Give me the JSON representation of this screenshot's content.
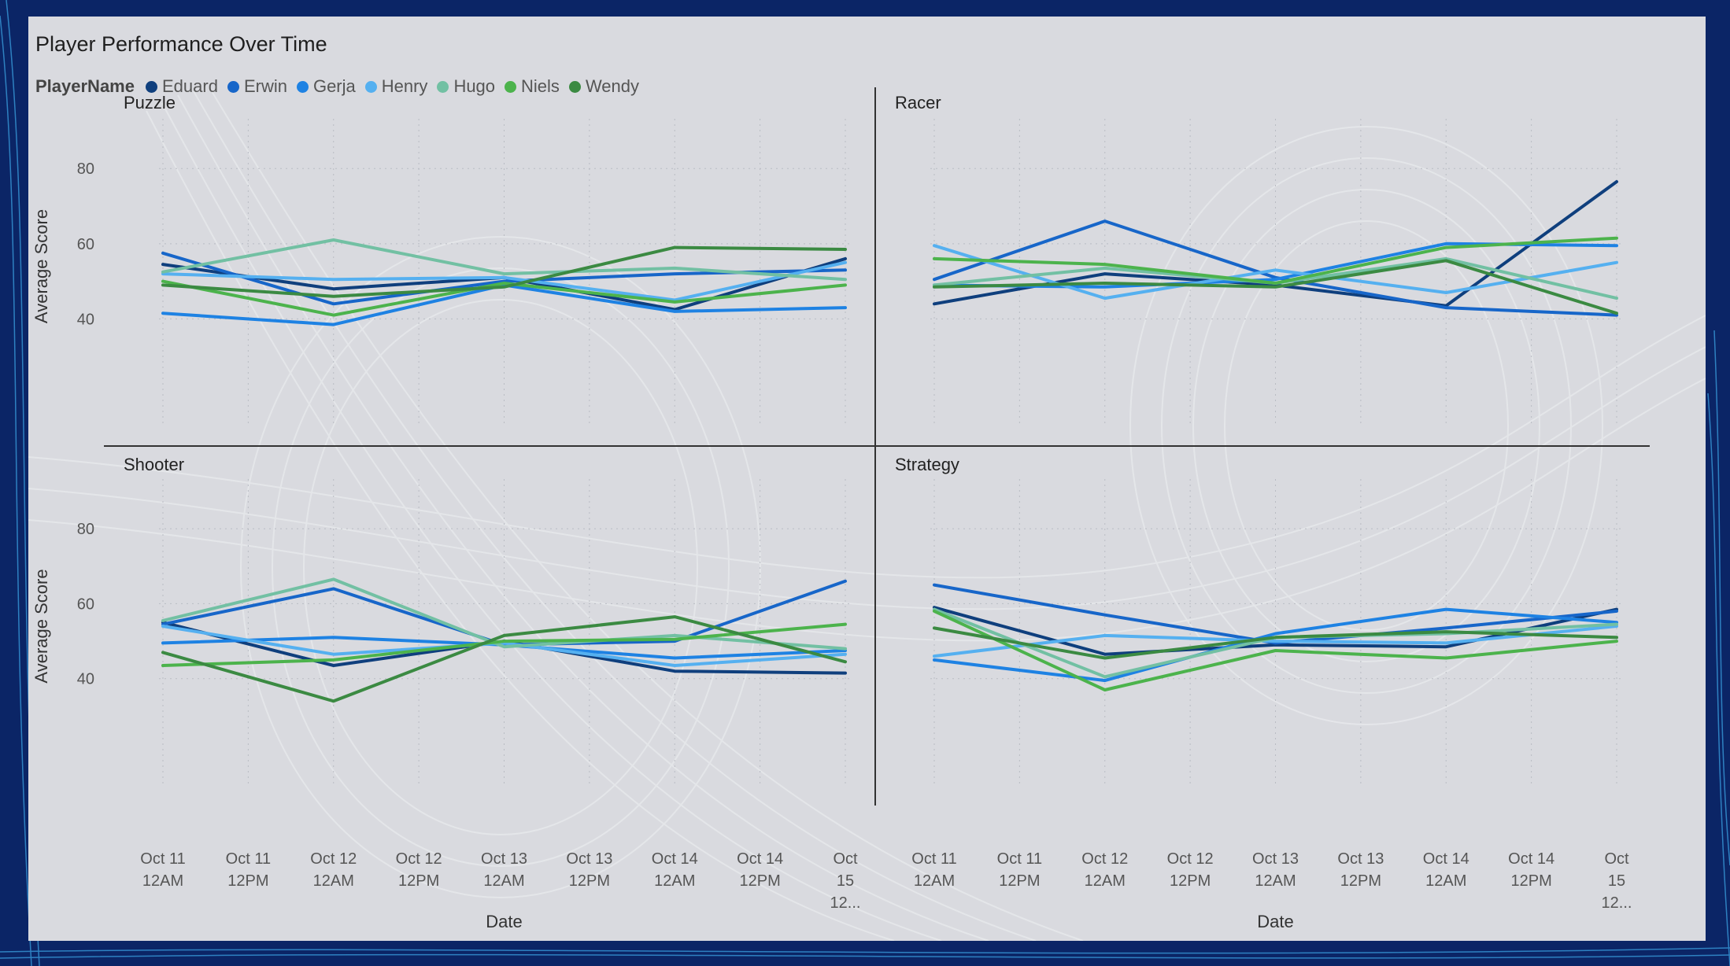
{
  "chart_data": {
    "type": "line",
    "title": "Player Performance Over Time",
    "legend_title": "PlayerName",
    "legend_position": "top-left",
    "xlabel": "Date",
    "ylabel": "Average Score",
    "ylim": [
      20,
      88
    ],
    "yticks": [
      40,
      60,
      80
    ],
    "x_ticks": [
      [
        "Oct 11",
        "12AM"
      ],
      [
        "Oct 11",
        "12PM"
      ],
      [
        "Oct 12",
        "12AM"
      ],
      [
        "Oct 12",
        "12PM"
      ],
      [
        "Oct 13",
        "12AM"
      ],
      [
        "Oct 13",
        "12PM"
      ],
      [
        "Oct 14",
        "12AM"
      ],
      [
        "Oct 14",
        "12PM"
      ],
      [
        "Oct",
        "15",
        "12..."
      ]
    ],
    "x": [
      "Oct 11 12AM",
      "Oct 12 12AM",
      "Oct 13 12AM",
      "Oct 14 12AM",
      "Oct 15 12AM"
    ],
    "players": [
      {
        "name": "Eduard",
        "color": "#0f3f7d"
      },
      {
        "name": "Erwin",
        "color": "#1766c9"
      },
      {
        "name": "Gerja",
        "color": "#1e82e3"
      },
      {
        "name": "Henry",
        "color": "#55b0f0"
      },
      {
        "name": "Hugo",
        "color": "#72c0a3"
      },
      {
        "name": "Niels",
        "color": "#4cb34c"
      },
      {
        "name": "Wendy",
        "color": "#3b8a42"
      }
    ],
    "panels": [
      {
        "name": "Puzzle",
        "series": [
          {
            "name": "Eduard",
            "values": [
              54.5,
              48,
              51,
              42.5,
              56
            ]
          },
          {
            "name": "Erwin",
            "values": [
              57.5,
              44,
              50,
              52,
              53
            ]
          },
          {
            "name": "Gerja",
            "values": [
              41.5,
              38.5,
              49,
              42,
              43
            ]
          },
          {
            "name": "Henry",
            "values": [
              52,
              50.5,
              51,
              45,
              55
            ]
          },
          {
            "name": "Hugo",
            "values": [
              52.5,
              61,
              52,
              53.5,
              50.5
            ]
          },
          {
            "name": "Niels",
            "values": [
              50,
              41,
              49.5,
              44.5,
              49
            ]
          },
          {
            "name": "Wendy",
            "values": [
              49,
              46,
              48.5,
              59,
              58.5
            ]
          }
        ]
      },
      {
        "name": "Racer",
        "series": [
          {
            "name": "Eduard",
            "values": [
              44,
              52,
              49,
              43.5,
              76.5
            ]
          },
          {
            "name": "Erwin",
            "values": [
              50.5,
              66,
              51,
              43,
              41
            ]
          },
          {
            "name": "Gerja",
            "values": [
              49,
              48.5,
              50.5,
              60,
              59.5
            ]
          },
          {
            "name": "Henry",
            "values": [
              59.5,
              45.5,
              53,
              47,
              55
            ]
          },
          {
            "name": "Hugo",
            "values": [
              49,
              53.5,
              49.5,
              56,
              45.5
            ]
          },
          {
            "name": "Niels",
            "values": [
              56,
              54.5,
              49.5,
              59,
              61.5
            ]
          },
          {
            "name": "Wendy",
            "values": [
              48.5,
              49.5,
              48.5,
              55.5,
              41.5
            ]
          }
        ]
      },
      {
        "name": "Shooter",
        "series": [
          {
            "name": "Eduard",
            "values": [
              55,
              43.5,
              50,
              42,
              41.5
            ]
          },
          {
            "name": "Erwin",
            "values": [
              54.5,
              64,
              49,
              50,
              66
            ]
          },
          {
            "name": "Gerja",
            "values": [
              49.5,
              51,
              49,
              45.5,
              47.5
            ]
          },
          {
            "name": "Henry",
            "values": [
              54,
              46.5,
              49.5,
              43.5,
              46.5
            ]
          },
          {
            "name": "Hugo",
            "values": [
              55.5,
              66.5,
              48.5,
              51.5,
              48
            ]
          },
          {
            "name": "Niels",
            "values": [
              43.5,
              45,
              50,
              50.5,
              54.5
            ]
          },
          {
            "name": "Wendy",
            "values": [
              47,
              34,
              51.5,
              56.5,
              44.5
            ]
          }
        ]
      },
      {
        "name": "Strategy",
        "series": [
          {
            "name": "Eduard",
            "values": [
              59,
              46.5,
              49,
              48.5,
              58.5
            ]
          },
          {
            "name": "Erwin",
            "values": [
              65,
              57,
              49.5,
              53.5,
              58
            ]
          },
          {
            "name": "Gerja",
            "values": [
              45,
              39.5,
              52,
              58.5,
              55
            ]
          },
          {
            "name": "Henry",
            "values": [
              46,
              51.5,
              50,
              49.5,
              54
            ]
          },
          {
            "name": "Hugo",
            "values": [
              58.5,
              40.5,
              51,
              52,
              54.5
            ]
          },
          {
            "name": "Niels",
            "values": [
              58,
              37,
              47.5,
              45.5,
              50
            ]
          },
          {
            "name": "Wendy",
            "values": [
              53.5,
              45.5,
              51,
              52.5,
              51
            ]
          }
        ]
      }
    ]
  }
}
